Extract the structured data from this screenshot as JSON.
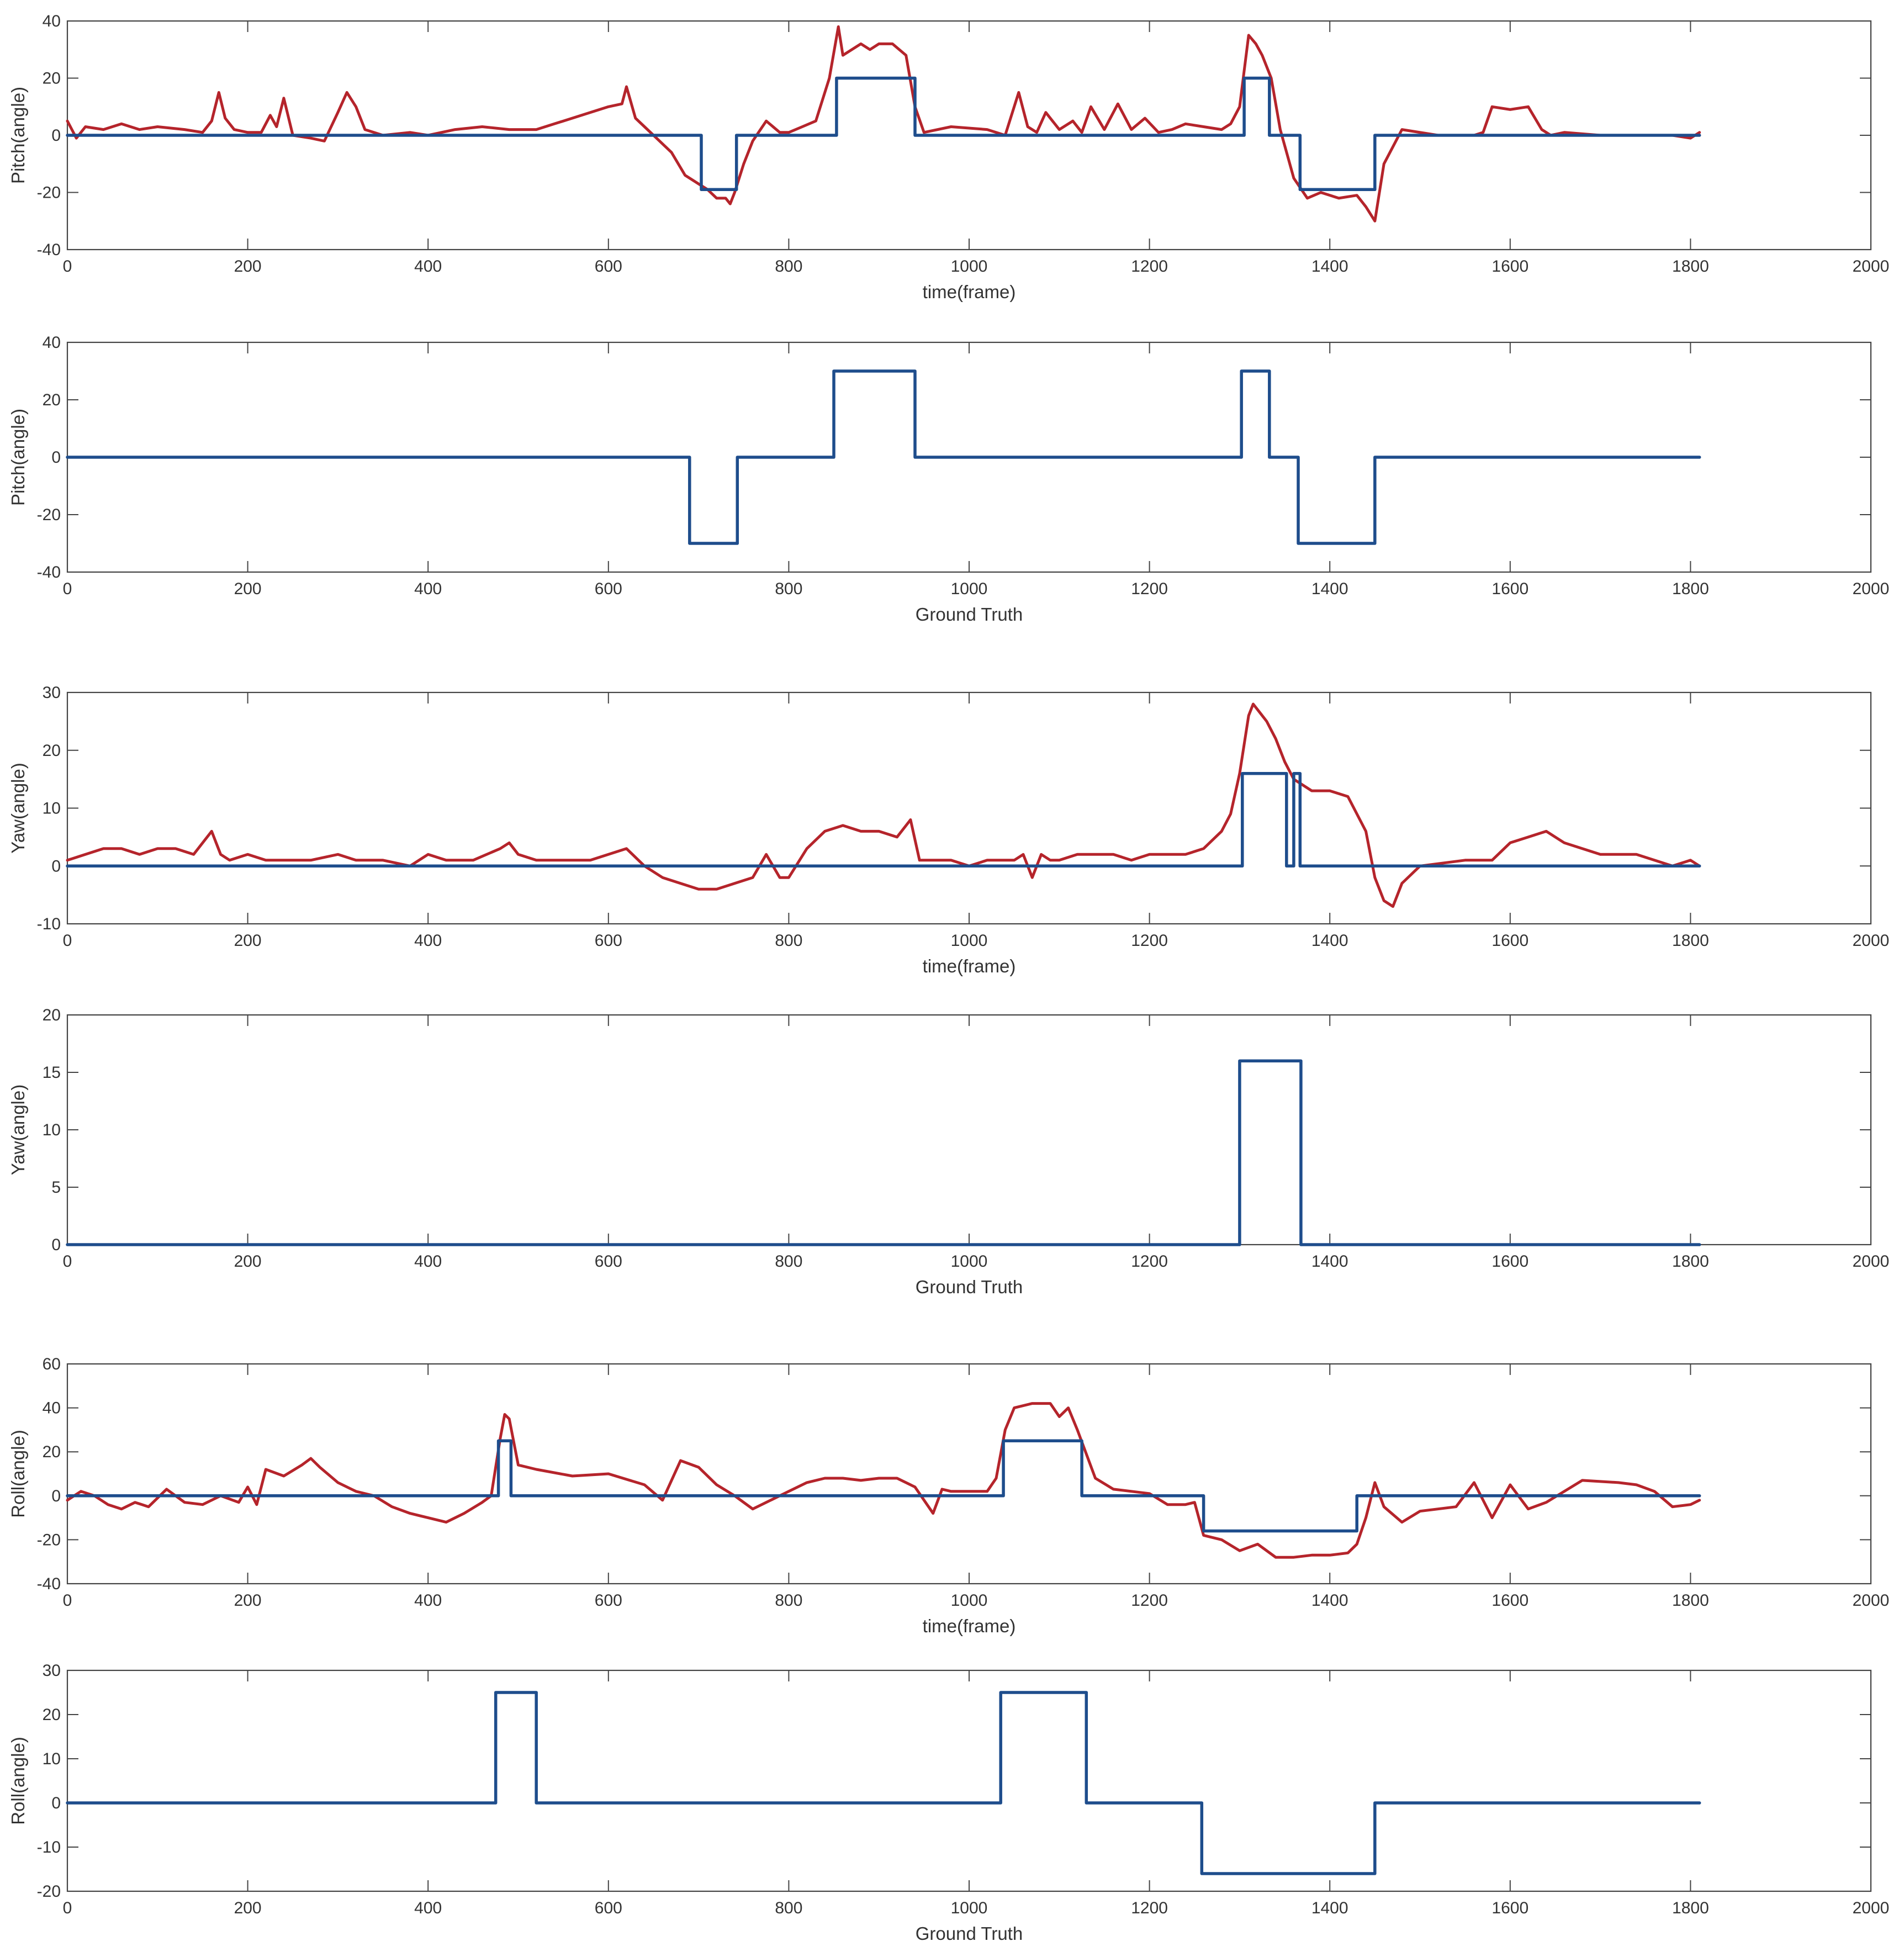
{
  "colors": {
    "predicted": "#b5242b",
    "ground_truth": "#1e4d8c",
    "axes": "#444444"
  },
  "chart_data": [
    {
      "type": "line",
      "id": "pitch-pred",
      "xlabel": "time(frame)",
      "ylabel": "Pitch(angle)",
      "xlim": [
        0,
        2000
      ],
      "ylim": [
        -40,
        40
      ],
      "xticks": [
        0,
        200,
        400,
        600,
        800,
        1000,
        1200,
        1400,
        1600,
        1800,
        2000
      ],
      "yticks": [
        -40,
        -20,
        0,
        20,
        40
      ],
      "series": [
        {
          "name": "predicted",
          "color": "#b5242b",
          "x": [
            0,
            10,
            20,
            40,
            60,
            80,
            100,
            130,
            150,
            160,
            168,
            175,
            185,
            200,
            215,
            225,
            232,
            240,
            250,
            270,
            285,
            300,
            310,
            320,
            330,
            350,
            380,
            400,
            430,
            460,
            490,
            520,
            540,
            560,
            580,
            600,
            615,
            620,
            630,
            650,
            670,
            685,
            700,
            710,
            720,
            730,
            735,
            740,
            750,
            760,
            775,
            790,
            800,
            815,
            830,
            845,
            855,
            860,
            870,
            880,
            890,
            900,
            915,
            930,
            940,
            950,
            980,
            1020,
            1040,
            1055,
            1065,
            1075,
            1085,
            1100,
            1115,
            1125,
            1135,
            1150,
            1165,
            1180,
            1195,
            1210,
            1225,
            1240,
            1260,
            1280,
            1290,
            1300,
            1310,
            1318,
            1325,
            1335,
            1345,
            1360,
            1375,
            1390,
            1410,
            1430,
            1440,
            1450,
            1460,
            1480,
            1520,
            1560,
            1570,
            1580,
            1600,
            1620,
            1635,
            1645,
            1660,
            1700,
            1750,
            1780,
            1800,
            1810
          ],
          "y": [
            5,
            -1,
            3,
            2,
            4,
            2,
            3,
            2,
            1,
            5,
            15,
            6,
            2,
            1,
            1,
            7,
            3,
            13,
            0,
            -1,
            -2,
            8,
            15,
            10,
            2,
            0,
            1,
            0,
            2,
            3,
            2,
            2,
            4,
            6,
            8,
            10,
            11,
            17,
            6,
            0,
            -6,
            -14,
            -17,
            -19,
            -22,
            -22,
            -24,
            -20,
            -10,
            -2,
            5,
            1,
            1,
            3,
            5,
            20,
            38,
            28,
            30,
            32,
            30,
            32,
            32,
            28,
            10,
            1,
            3,
            2,
            0,
            15,
            3,
            1,
            8,
            2,
            5,
            1,
            10,
            2,
            11,
            2,
            6,
            1,
            2,
            4,
            3,
            2,
            4,
            10,
            35,
            32,
            28,
            20,
            2,
            -15,
            -22,
            -20,
            -22,
            -21,
            -25,
            -30,
            -10,
            2,
            0,
            0,
            1,
            10,
            9,
            10,
            2,
            0,
            1,
            0,
            0,
            0,
            -1,
            1
          ]
        },
        {
          "name": "ground truth (overlay)",
          "color": "#1e4d8c",
          "steps": [
            [
              0,
              0
            ],
            [
              703,
              -19
            ],
            [
              742,
              0
            ],
            [
              853,
              20
            ],
            [
              940,
              0
            ],
            [
              1305,
              20
            ],
            [
              1333,
              0
            ],
            [
              1367,
              -19
            ],
            [
              1450,
              0
            ],
            [
              1810,
              0
            ]
          ]
        }
      ]
    },
    {
      "type": "line",
      "id": "pitch-gt",
      "xlabel": "Ground Truth",
      "ylabel": "Pitch(angle)",
      "xlim": [
        0,
        2000
      ],
      "ylim": [
        -40,
        40
      ],
      "xticks": [
        0,
        200,
        400,
        600,
        800,
        1000,
        1200,
        1400,
        1600,
        1800,
        2000
      ],
      "yticks": [
        -40,
        -20,
        0,
        20,
        40
      ],
      "series": [
        {
          "name": "ground truth",
          "color": "#1e4d8c",
          "steps": [
            [
              0,
              0
            ],
            [
              690,
              -30
            ],
            [
              743,
              0
            ],
            [
              850,
              30
            ],
            [
              940,
              0
            ],
            [
              1302,
              30
            ],
            [
              1333,
              0
            ],
            [
              1365,
              -30
            ],
            [
              1450,
              0
            ],
            [
              1810,
              0
            ]
          ]
        }
      ]
    },
    {
      "type": "line",
      "id": "yaw-pred",
      "xlabel": "time(frame)",
      "ylabel": "Yaw(angle)",
      "xlim": [
        0,
        2000
      ],
      "ylim": [
        -10,
        30
      ],
      "xticks": [
        0,
        200,
        400,
        600,
        800,
        1000,
        1200,
        1400,
        1600,
        1800,
        2000
      ],
      "yticks": [
        -10,
        0,
        10,
        20,
        30
      ],
      "series": [
        {
          "name": "predicted",
          "color": "#b5242b",
          "x": [
            0,
            20,
            40,
            60,
            80,
            100,
            120,
            140,
            160,
            165,
            170,
            180,
            200,
            220,
            250,
            270,
            300,
            320,
            350,
            380,
            400,
            420,
            450,
            480,
            490,
            500,
            520,
            540,
            560,
            580,
            600,
            620,
            640,
            660,
            680,
            700,
            720,
            740,
            760,
            775,
            790,
            800,
            820,
            840,
            860,
            880,
            900,
            920,
            935,
            945,
            960,
            980,
            1000,
            1020,
            1050,
            1060,
            1070,
            1080,
            1090,
            1100,
            1120,
            1140,
            1160,
            1180,
            1200,
            1220,
            1240,
            1260,
            1280,
            1290,
            1300,
            1310,
            1315,
            1320,
            1330,
            1340,
            1350,
            1360,
            1380,
            1400,
            1420,
            1440,
            1450,
            1460,
            1470,
            1480,
            1500,
            1550,
            1580,
            1600,
            1620,
            1640,
            1660,
            1700,
            1740,
            1760,
            1780,
            1800,
            1810
          ],
          "y": [
            1,
            2,
            3,
            3,
            2,
            3,
            3,
            2,
            6,
            4,
            2,
            1,
            2,
            1,
            1,
            1,
            2,
            1,
            1,
            0,
            2,
            1,
            1,
            3,
            4,
            2,
            1,
            1,
            1,
            1,
            2,
            3,
            0,
            -2,
            -3,
            -4,
            -4,
            -3,
            -2,
            2,
            -2,
            -2,
            3,
            6,
            7,
            6,
            6,
            5,
            8,
            1,
            1,
            1,
            0,
            1,
            1,
            2,
            -2,
            2,
            1,
            1,
            2,
            2,
            2,
            1,
            2,
            2,
            2,
            3,
            6,
            9,
            16,
            26,
            28,
            27,
            25,
            22,
            18,
            15,
            13,
            13,
            12,
            6,
            -2,
            -6,
            -7,
            -3,
            0,
            1,
            1,
            4,
            5,
            6,
            4,
            2,
            2,
            1,
            0,
            1,
            0
          ]
        },
        {
          "name": "ground truth (overlay)",
          "color": "#1e4d8c",
          "steps": [
            [
              0,
              0
            ],
            [
              1303,
              16
            ],
            [
              1352,
              0
            ],
            [
              1360,
              16
            ],
            [
              1367,
              0
            ],
            [
              1810,
              0
            ]
          ]
        }
      ]
    },
    {
      "type": "line",
      "id": "yaw-gt",
      "xlabel": "Ground Truth",
      "ylabel": "Yaw(angle)",
      "xlim": [
        0,
        2000
      ],
      "ylim": [
        0,
        20
      ],
      "xticks": [
        0,
        200,
        400,
        600,
        800,
        1000,
        1200,
        1400,
        1600,
        1800,
        2000
      ],
      "yticks": [
        0,
        5,
        10,
        15,
        20
      ],
      "series": [
        {
          "name": "ground truth",
          "color": "#1e4d8c",
          "steps": [
            [
              0,
              0
            ],
            [
              1300,
              16
            ],
            [
              1368,
              0
            ],
            [
              1810,
              0
            ]
          ]
        }
      ]
    },
    {
      "type": "line",
      "id": "roll-pred",
      "xlabel": "time(frame)",
      "ylabel": "Roll(angle)",
      "xlim": [
        0,
        2000
      ],
      "ylim": [
        -40,
        60
      ],
      "xticks": [
        0,
        200,
        400,
        600,
        800,
        1000,
        1200,
        1400,
        1600,
        1800,
        2000
      ],
      "yticks": [
        -40,
        -20,
        0,
        20,
        40,
        60
      ],
      "series": [
        {
          "name": "predicted",
          "color": "#b5242b",
          "x": [
            0,
            15,
            30,
            45,
            60,
            75,
            90,
            110,
            130,
            150,
            170,
            190,
            200,
            210,
            220,
            240,
            260,
            270,
            280,
            300,
            320,
            340,
            360,
            380,
            400,
            420,
            440,
            460,
            470,
            480,
            485,
            490,
            500,
            520,
            560,
            600,
            640,
            660,
            680,
            700,
            720,
            740,
            760,
            780,
            800,
            820,
            840,
            860,
            880,
            900,
            920,
            940,
            960,
            970,
            980,
            1000,
            1020,
            1030,
            1040,
            1050,
            1070,
            1090,
            1100,
            1110,
            1120,
            1140,
            1160,
            1180,
            1200,
            1220,
            1240,
            1250,
            1260,
            1280,
            1300,
            1320,
            1340,
            1360,
            1380,
            1400,
            1420,
            1430,
            1440,
            1450,
            1460,
            1480,
            1500,
            1540,
            1560,
            1580,
            1600,
            1620,
            1640,
            1680,
            1720,
            1740,
            1760,
            1780,
            1800,
            1810
          ],
          "y": [
            -2,
            2,
            0,
            -4,
            -6,
            -3,
            -5,
            3,
            -3,
            -4,
            0,
            -3,
            4,
            -4,
            12,
            9,
            14,
            17,
            13,
            6,
            2,
            0,
            -5,
            -8,
            -10,
            -12,
            -8,
            -3,
            0,
            26,
            37,
            35,
            14,
            12,
            9,
            10,
            5,
            -2,
            16,
            13,
            5,
            0,
            -6,
            -2,
            2,
            6,
            8,
            8,
            7,
            8,
            8,
            4,
            -8,
            3,
            2,
            2,
            2,
            8,
            30,
            40,
            42,
            42,
            36,
            40,
            30,
            8,
            3,
            2,
            1,
            -4,
            -4,
            -3,
            -18,
            -20,
            -25,
            -22,
            -28,
            -28,
            -27,
            -27,
            -26,
            -22,
            -10,
            6,
            -5,
            -12,
            -7,
            -5,
            6,
            -10,
            5,
            -6,
            -3,
            7,
            6,
            5,
            2,
            -5,
            -4,
            -2
          ]
        },
        {
          "name": "ground truth (overlay)",
          "color": "#1e4d8c",
          "steps": [
            [
              0,
              0
            ],
            [
              478,
              25
            ],
            [
              492,
              0
            ],
            [
              1038,
              25
            ],
            [
              1125,
              0
            ],
            [
              1260,
              -16
            ],
            [
              1430,
              0
            ],
            [
              1810,
              0
            ]
          ]
        }
      ]
    },
    {
      "type": "line",
      "id": "roll-gt",
      "xlabel": "Ground Truth",
      "ylabel": "Roll(angle)",
      "xlim": [
        0,
        2000
      ],
      "ylim": [
        -20,
        30
      ],
      "xticks": [
        0,
        200,
        400,
        600,
        800,
        1000,
        1200,
        1400,
        1600,
        1800,
        2000
      ],
      "yticks": [
        -20,
        -10,
        0,
        10,
        20,
        30
      ],
      "series": [
        {
          "name": "ground truth",
          "color": "#1e4d8c",
          "steps": [
            [
              0,
              0
            ],
            [
              475,
              25
            ],
            [
              520,
              0
            ],
            [
              1035,
              25
            ],
            [
              1130,
              0
            ],
            [
              1258,
              -16
            ],
            [
              1450,
              0
            ],
            [
              1810,
              0
            ]
          ]
        }
      ]
    }
  ]
}
